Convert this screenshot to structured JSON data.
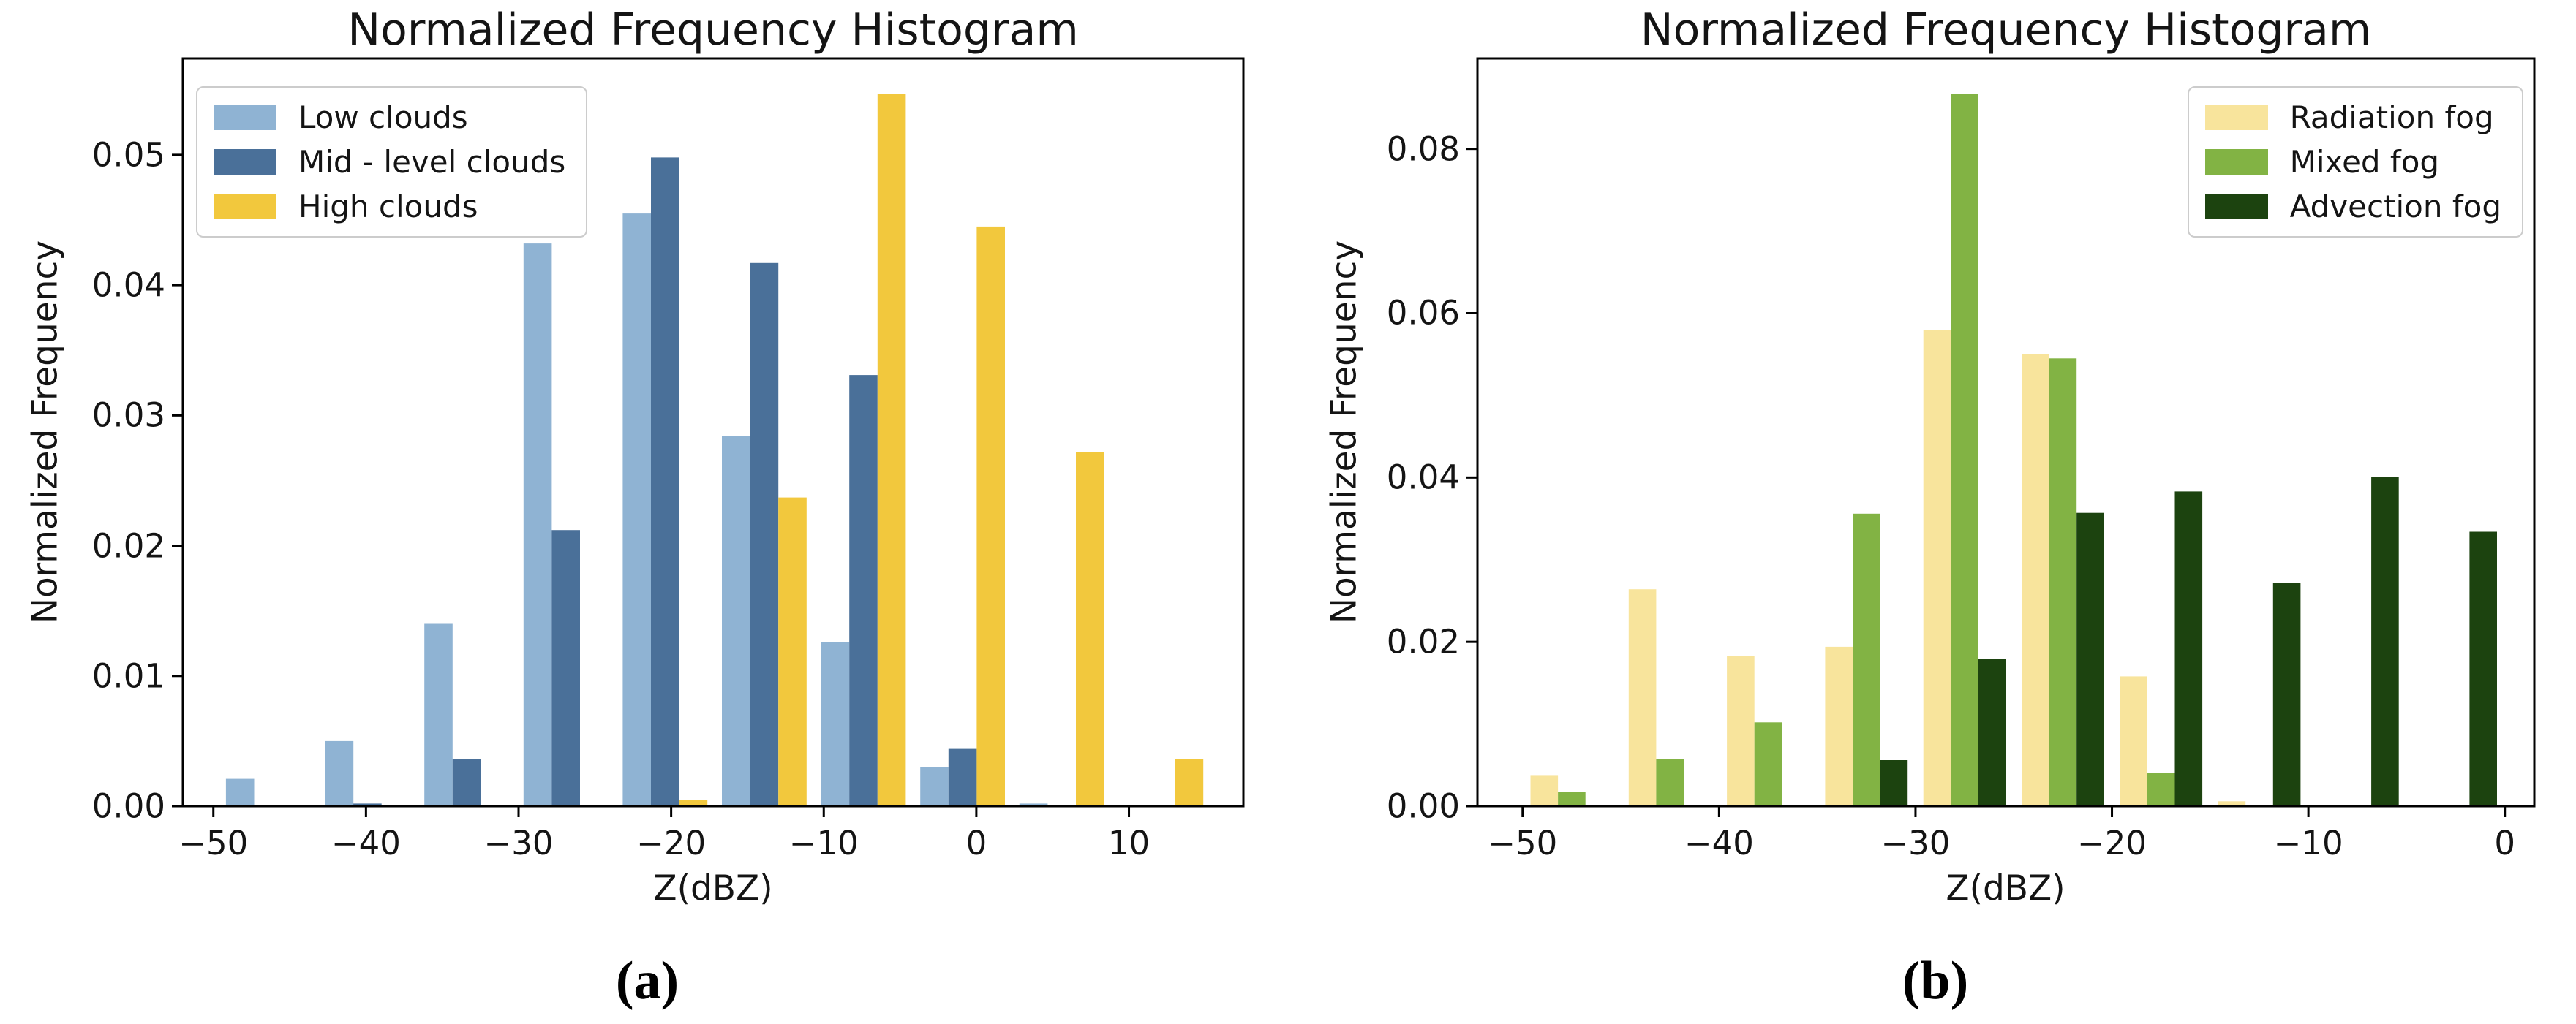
{
  "figure_background": "#ffffff",
  "chart_data": [
    {
      "type": "bar",
      "panel": "a",
      "caption": "(a)",
      "title": "Normalized Frequency Histogram",
      "xlabel": "Z(dBZ)",
      "ylabel": "Normalized Frequency",
      "legend_position": "upper-left",
      "grid": false,
      "xlim": [
        -52,
        17.5
      ],
      "ylim": [
        0,
        0.0574
      ],
      "xticks": [
        -50,
        -40,
        -30,
        -20,
        -10,
        0,
        10
      ],
      "yticks": [
        0,
        0.01,
        0.02,
        0.03,
        0.04,
        0.05
      ],
      "ytick_decimals": 2,
      "x_group_centers": [
        -46.4,
        -39.9,
        -33.4,
        -26.9,
        -20.4,
        -13.9,
        -7.4,
        -0.9,
        5.6,
        12.1
      ],
      "bar_width": 1.85,
      "bar_offset": 1.85,
      "series": [
        {
          "name": "Low clouds",
          "color": "#8FB3D3",
          "values": [
            0.0021,
            0.005,
            0.014,
            0.0432,
            0.0455,
            0.0284,
            0.0126,
            0.003,
            0.0002,
            0
          ]
        },
        {
          "name": "Mid - level clouds",
          "color": "#4A7099",
          "values": [
            0,
            0.0002,
            0.0036,
            0.0212,
            0.0498,
            0.0417,
            0.0331,
            0.0044,
            0,
            0
          ]
        },
        {
          "name": "High clouds",
          "color": "#F2C83D",
          "values": [
            0,
            0,
            0,
            0,
            0.0005,
            0.0237,
            0.0547,
            0.0445,
            0.0272,
            0.0036
          ]
        }
      ]
    },
    {
      "type": "bar",
      "panel": "b",
      "caption": "(b)",
      "title": "Normalized Frequency Histogram",
      "xlabel": "Z(dBZ)",
      "ylabel": "Normalized Frequency",
      "legend_position": "upper-right",
      "grid": false,
      "xlim": [
        -52.3,
        1.5
      ],
      "ylim": [
        0,
        0.091
      ],
      "xticks": [
        -50,
        -40,
        -30,
        -20,
        -10,
        0
      ],
      "yticks": [
        0,
        0.02,
        0.04,
        0.06,
        0.08
      ],
      "ytick_decimals": 2,
      "x_group_centers": [
        -47.5,
        -42.5,
        -37.5,
        -32.5,
        -27.5,
        -22.5,
        -17.5,
        -12.5,
        -7.5,
        -2.5
      ],
      "bar_width": 1.4,
      "bar_offset": 1.4,
      "series": [
        {
          "name": "Radiation fog",
          "color": "#F8E49C",
          "values": [
            0.0037,
            0.0264,
            0.0183,
            0.0194,
            0.058,
            0.055,
            0.0158,
            0.0006,
            0,
            0
          ]
        },
        {
          "name": "Mixed fog",
          "color": "#82B344",
          "values": [
            0.0017,
            0.0057,
            0.0102,
            0.0356,
            0.0867,
            0.0545,
            0.004,
            0,
            0,
            0
          ]
        },
        {
          "name": "Advection fog",
          "color": "#1C430F",
          "values": [
            0,
            0,
            0,
            0.0056,
            0.0179,
            0.0357,
            0.0383,
            0.0272,
            0.0401,
            0.0334
          ]
        }
      ]
    }
  ],
  "style": {
    "axis_color": "#000000",
    "text_color": "#141414"
  }
}
